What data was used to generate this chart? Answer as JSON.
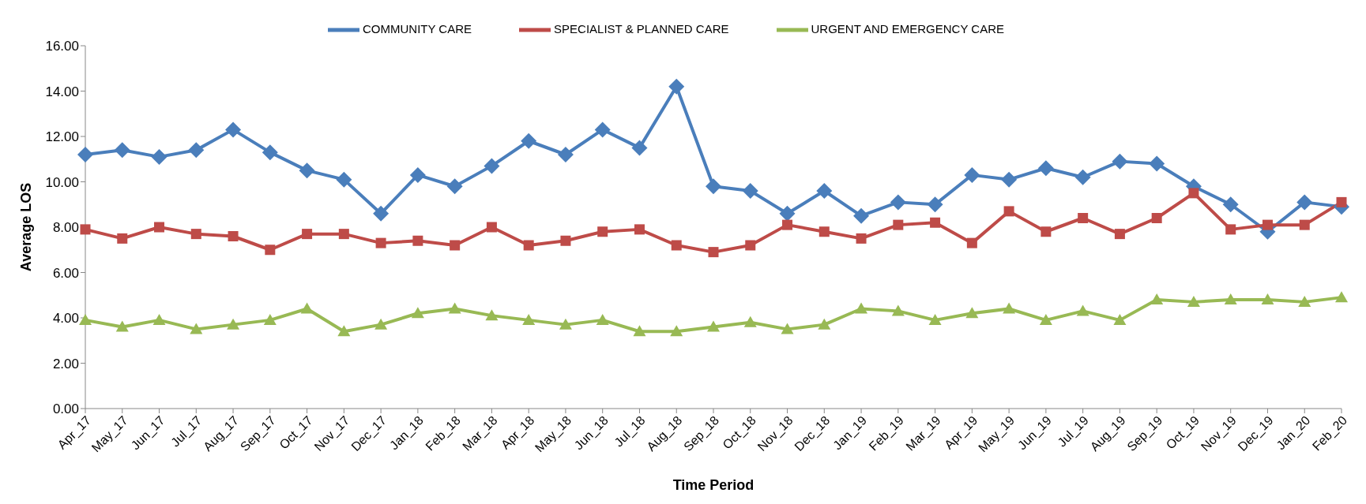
{
  "chart_data": {
    "type": "line",
    "xlabel": "Time Period",
    "ylabel": "Average LOS",
    "categories": [
      "Apr_17",
      "May_17",
      "Jun_17",
      "Jul_17",
      "Aug_17",
      "Sep_17",
      "Oct_17",
      "Nov_17",
      "Dec_17",
      "Jan_18",
      "Feb_18",
      "Mar_18",
      "Apr_18",
      "May_18",
      "Jun_18",
      "Jul_18",
      "Aug_18",
      "Sep_18",
      "Oct_18",
      "Nov_18",
      "Dec_18",
      "Jan_19",
      "Feb_19",
      "Mar_19",
      "Apr_19",
      "May_19",
      "Jun_19",
      "Jul_19",
      "Aug_19",
      "Sep_19",
      "Oct_19",
      "Nov_19",
      "Dec_19",
      "Jan_20",
      "Feb_20"
    ],
    "series": [
      {
        "name": "COMMUNITY CARE",
        "color": "#4a7ebb",
        "marker": "diamond",
        "values": [
          11.2,
          11.4,
          11.1,
          11.4,
          12.3,
          11.3,
          10.5,
          10.1,
          8.6,
          10.3,
          9.8,
          10.7,
          11.8,
          11.2,
          12.3,
          11.5,
          14.2,
          9.8,
          9.6,
          8.6,
          9.6,
          8.5,
          9.1,
          9.0,
          10.3,
          10.1,
          10.6,
          10.2,
          10.9,
          10.8,
          9.8,
          9.0,
          7.8,
          9.1,
          8.9
        ]
      },
      {
        "name": "SPECIALIST & PLANNED CARE",
        "color": "#be4b48",
        "marker": "square",
        "values": [
          7.9,
          7.5,
          8.0,
          7.7,
          7.6,
          7.0,
          7.7,
          7.7,
          7.3,
          7.4,
          7.2,
          8.0,
          7.2,
          7.4,
          7.8,
          7.9,
          7.2,
          6.9,
          7.2,
          8.1,
          7.8,
          7.5,
          8.1,
          8.2,
          7.3,
          8.7,
          7.8,
          8.4,
          7.7,
          8.4,
          9.5,
          7.9,
          8.1,
          8.1,
          9.1
        ]
      },
      {
        "name": "URGENT AND EMERGENCY CARE",
        "color": "#98b954",
        "marker": "triangle",
        "values": [
          3.9,
          3.6,
          3.9,
          3.5,
          3.7,
          3.9,
          4.4,
          3.4,
          3.7,
          4.2,
          4.4,
          4.1,
          3.9,
          3.7,
          3.9,
          3.4,
          3.4,
          3.6,
          3.8,
          3.5,
          3.7,
          4.4,
          4.3,
          3.9,
          4.2,
          4.4,
          3.9,
          4.3,
          3.9,
          4.8,
          4.7,
          4.8,
          4.8,
          4.7,
          4.9
        ]
      }
    ],
    "ylim": [
      0,
      16
    ],
    "yticks": [
      {
        "value": 0,
        "label": "0.00"
      },
      {
        "value": 2,
        "label": "2.00"
      },
      {
        "value": 4,
        "label": "4.00"
      },
      {
        "value": 6,
        "label": "6.00"
      },
      {
        "value": 8,
        "label": "8.00"
      },
      {
        "value": 10,
        "label": "10.00"
      },
      {
        "value": 12,
        "label": "12.00"
      },
      {
        "value": 14,
        "label": "14.00"
      },
      {
        "value": 16,
        "label": "16.00"
      }
    ],
    "grid": false,
    "legend": "top",
    "line_style": "solid"
  }
}
